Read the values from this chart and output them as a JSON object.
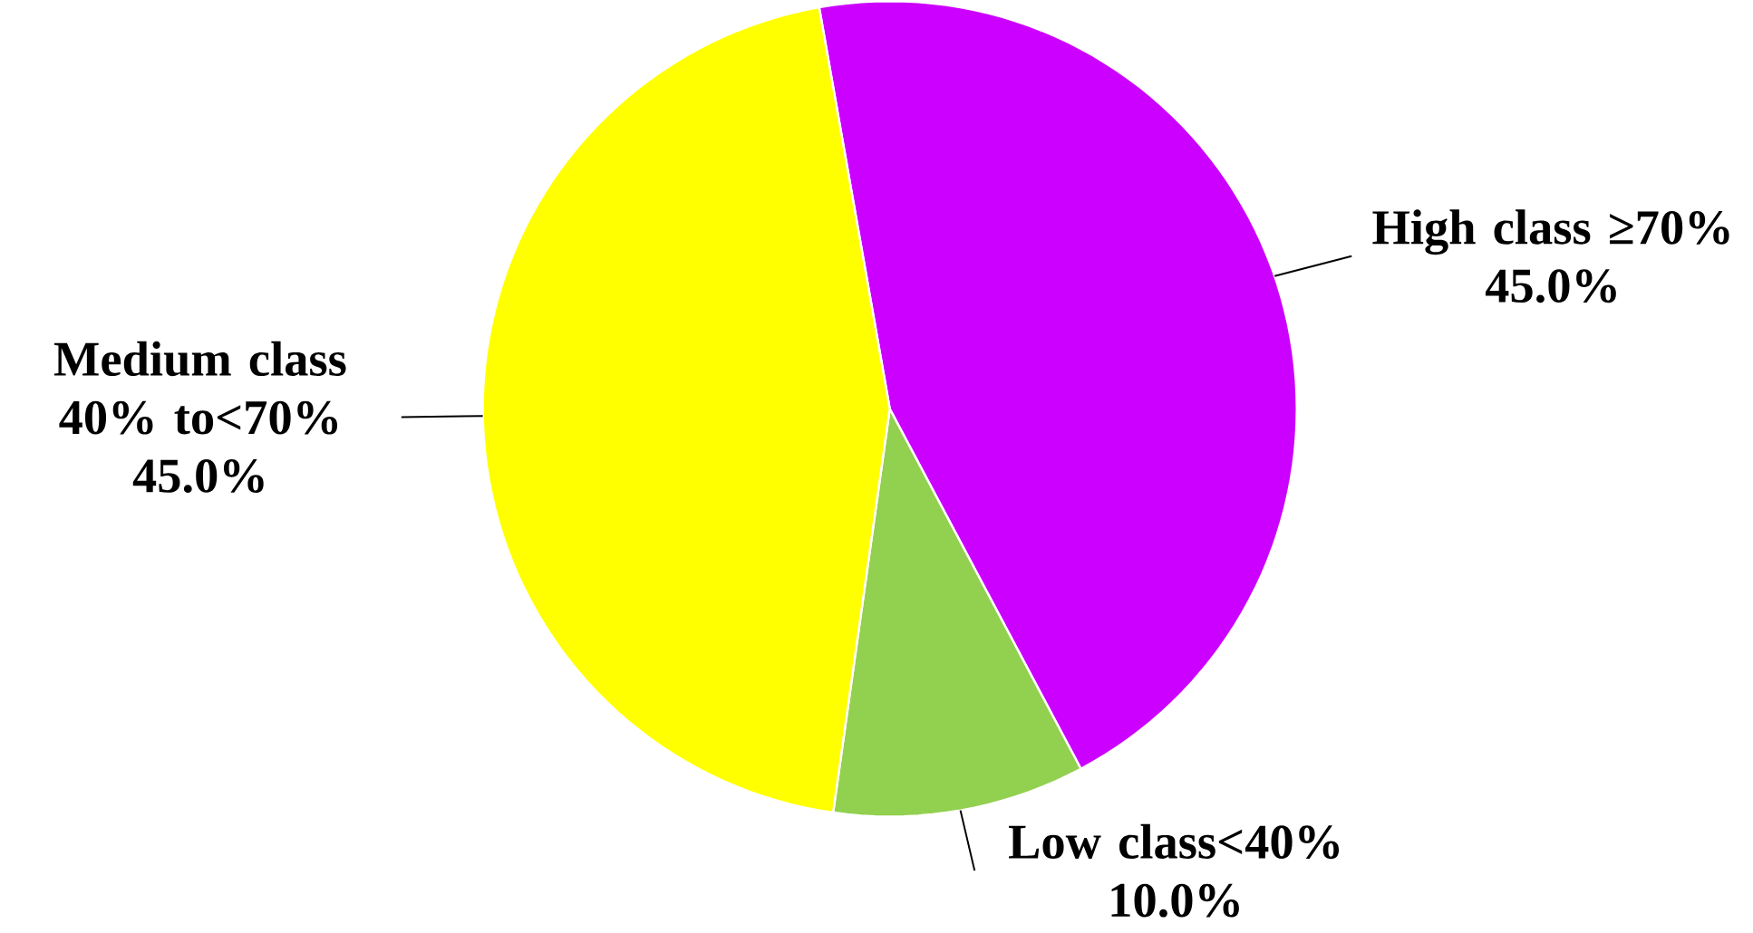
{
  "chart_data": {
    "type": "pie",
    "categories": [
      "High class ≥70%",
      "Low class<40%",
      "Medium class 40% to<70%"
    ],
    "values": [
      45,
      10,
      45
    ],
    "value_labels": [
      "45.0%",
      "10.0%",
      "45.0%"
    ],
    "colors": [
      "#cc00ff",
      "#92d050",
      "#ffff00"
    ]
  }
}
